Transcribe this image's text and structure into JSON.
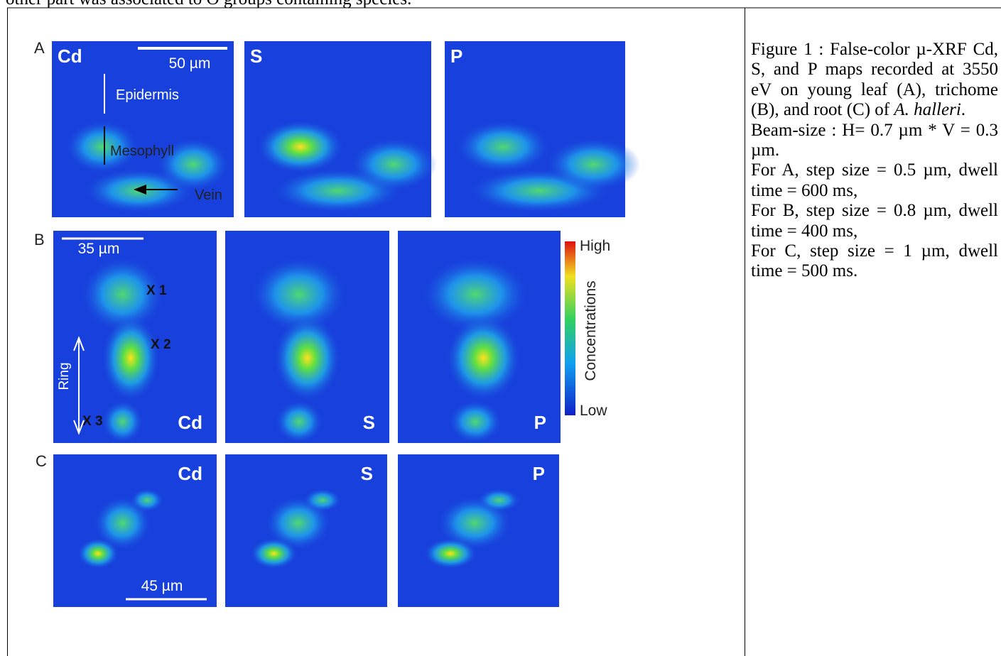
{
  "intro_text": "other part was associated to O groups containing species.",
  "figure": {
    "rows": [
      {
        "letter": "A",
        "panels": [
          "Cd",
          "S",
          "P"
        ],
        "scale_bar": "50 µm",
        "annotations": [
          "Epidermis",
          "Mesophyll",
          "Vein"
        ]
      },
      {
        "letter": "B",
        "panels": [
          "Cd",
          "S",
          "P"
        ],
        "scale_bar": "35 µm",
        "annotations": [
          "X 1",
          "X 2",
          "X 3",
          "Ring"
        ]
      },
      {
        "letter": "C",
        "panels": [
          "Cd",
          "S",
          "P"
        ],
        "scale_bar": "45 µm"
      }
    ],
    "colorbar": {
      "high": "High",
      "low": "Low",
      "label": "Concentrations"
    }
  },
  "caption": {
    "paragraphs": [
      [
        "Figure 1 : False-color µ-XRF Cd, S, and P maps recorded at 3550 eV on young leaf (A), trichome (B),  and root (C) of ",
        "A. halleri",
        "."
      ],
      [
        "Beam-size : H= 0.7 µm * V = 0.3 µm."
      ],
      [
        "For A,  step size = 0.5 µm, dwell time = 600 ms,"
      ],
      [
        "For B,  step size = 0.8 µm, dwell time = 400 ms,"
      ],
      [
        "For C,  step size = 1 µm, dwell time = 500 ms."
      ]
    ]
  }
}
